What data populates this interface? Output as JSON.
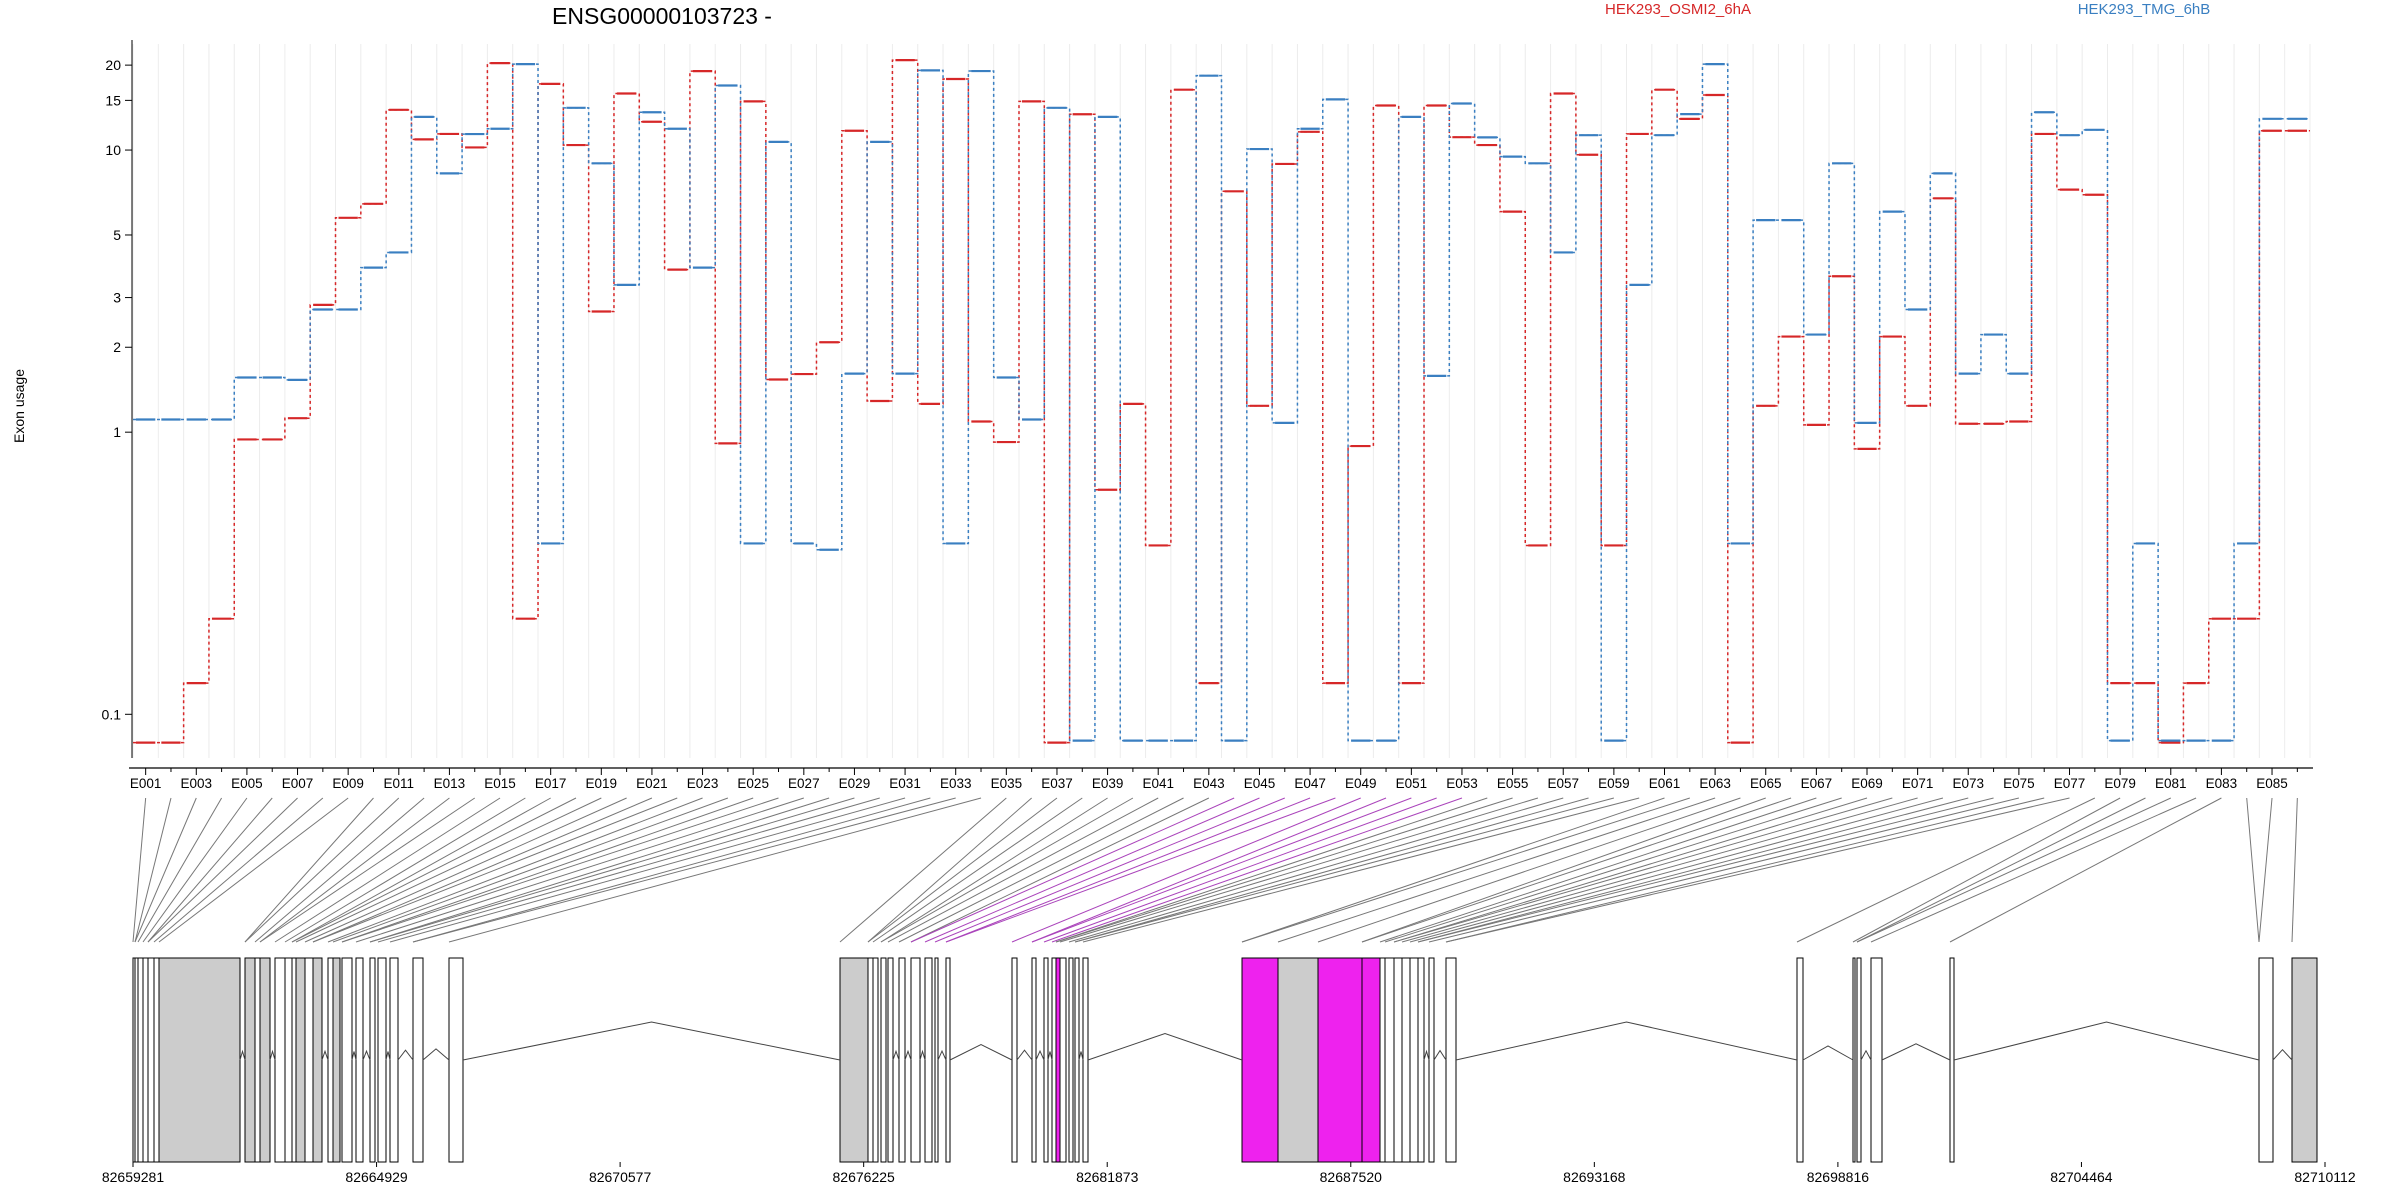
{
  "chart_data": {
    "type": "line",
    "title": "ENSG00000103723 -",
    "ylabel": "Exon usage",
    "yscale": "log",
    "ylim": [
      0.07,
      23
    ],
    "y_ticks": [
      0.1,
      1,
      2,
      3,
      5,
      10,
      15,
      20
    ],
    "legend_placement": "top",
    "grid": true,
    "categories": [
      "E001",
      "E002",
      "E003",
      "E004",
      "E005",
      "E006",
      "E007",
      "E008",
      "E009",
      "E010",
      "E011",
      "E012",
      "E013",
      "E014",
      "E015",
      "E016",
      "E017",
      "E018",
      "E019",
      "E020",
      "E021",
      "E022",
      "E023",
      "E024",
      "E025",
      "E026",
      "E027",
      "E028",
      "E029",
      "E030",
      "E031",
      "E032",
      "E033",
      "E034",
      "E035",
      "E036",
      "E037",
      "E038",
      "E039",
      "E040",
      "E041",
      "E042",
      "E043",
      "E044",
      "E045",
      "E046",
      "E047",
      "E048",
      "E049",
      "E050",
      "E051",
      "E052",
      "E053",
      "E054",
      "E055",
      "E056",
      "E057",
      "E058",
      "E059",
      "E060",
      "E061",
      "E062",
      "E063",
      "E064",
      "E065",
      "E066",
      "E067",
      "E068",
      "E069",
      "E070",
      "E071",
      "E072",
      "E073",
      "E074",
      "E075",
      "E076",
      "E077",
      "E078",
      "E079",
      "E080",
      "E081",
      "E082",
      "E083",
      "E084",
      "E085",
      "E086"
    ],
    "x_tick_labels": [
      "E001",
      "E003",
      "E005",
      "E007",
      "E009",
      "E011",
      "E013",
      "E015",
      "E017",
      "E019",
      "E021",
      "E023",
      "E025",
      "E027",
      "E029",
      "E031",
      "E033",
      "E035",
      "E037",
      "E039",
      "E041",
      "E043",
      "E045",
      "E047",
      "E049",
      "E051",
      "E053",
      "E055",
      "E057",
      "E059",
      "E061",
      "E063",
      "E065",
      "E067",
      "E069",
      "E071",
      "E073",
      "E075",
      "E077",
      "E079",
      "E081",
      "E083",
      "E085"
    ],
    "series": [
      {
        "name": "HEK293_OSMI2_6hA",
        "color": "#d62728",
        "values": [
          0.08,
          0.08,
          0.13,
          0.22,
          0.95,
          0.95,
          1.13,
          2.85,
          5.8,
          6.5,
          14,
          11,
          11.5,
          10.3,
          20.5,
          0.22,
          17.3,
          10.5,
          2.7,
          16,
          12.7,
          3.8,
          19.2,
          0.92,
          15,
          1.55,
          1.62,
          2.1,
          11.8,
          1.3,
          21,
          1.27,
          18,
          1.1,
          0.93,
          15,
          0.08,
          13.5,
          0.63,
          1.27,
          0.4,
          16.5,
          0.13,
          7.2,
          1.25,
          9,
          11.7,
          0.13,
          0.9,
          14.5,
          0.13,
          14.5,
          11.2,
          10.5,
          6.1,
          0.4,
          16,
          9.7,
          0.4,
          11.5,
          16.5,
          13,
          15.8,
          0.08,
          1.25,
          2.2,
          1.07,
          3.6,
          0.88,
          2.2,
          1.25,
          6.8,
          1.08,
          1.08,
          1.1,
          11.5,
          7.3,
          7,
          0.13,
          0.13,
          0.08,
          0.13,
          0.22,
          0.22,
          11.8,
          11.8
        ]
      },
      {
        "name": "HEK293_TMG_6hB",
        "color": "#3a7fc1",
        "values": [
          1.1,
          1.1,
          1.1,
          1.1,
          1.55,
          1.55,
          1.52,
          2.7,
          2.7,
          3.8,
          4.3,
          13,
          8.2,
          11.3,
          11.8,
          20,
          0.4,
          14,
          8.9,
          3.3,
          13.5,
          11.8,
          3.8,
          16.8,
          0.4,
          10.6,
          0.4,
          0.38,
          1.6,
          10.6,
          1.6,
          19,
          0.4,
          18.9,
          1.55,
          1.1,
          14,
          0.08,
          13,
          0.08,
          0.08,
          0.08,
          18.2,
          0.08,
          10,
          1.07,
          11.8,
          15,
          0.08,
          0.08,
          13,
          1.57,
          14.5,
          11,
          9.4,
          8.9,
          4.3,
          11.2,
          0.08,
          3.3,
          11.2,
          13.3,
          20,
          0.4,
          5.6,
          5.6,
          2.2,
          8.9,
          1.07,
          6,
          2.7,
          8.2,
          1.6,
          2.2,
          1.6,
          13.5,
          11.2,
          11.7,
          0.08,
          0.4,
          0.08,
          0.08,
          0.08,
          0.4,
          12.8,
          12.8
        ]
      }
    ],
    "gene_model": {
      "genomic_ticks": [
        "82659281",
        "82664929",
        "82670577",
        "82676225",
        "82681873",
        "82687520",
        "82693168",
        "82698816",
        "82704464",
        "82710112"
      ]
    }
  }
}
